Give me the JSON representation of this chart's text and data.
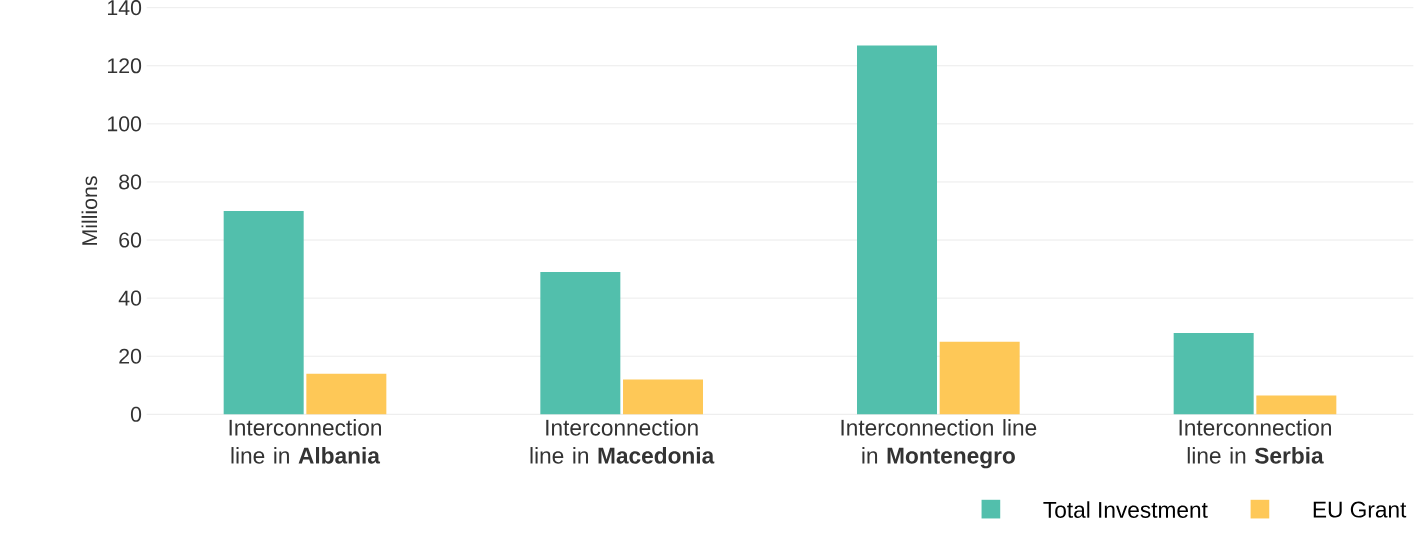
{
  "chart_data": {
    "type": "bar",
    "ylabel": "Millions",
    "categories": [
      "Interconnection line in **Albania**",
      "Interconnection line in **Macedonia**",
      "Interconnection line in **Montenegro**",
      "Interconnection line in **Serbia**"
    ],
    "series": [
      {
        "name": "Total Investment",
        "color": "#52bfac",
        "values": [
          70,
          49,
          127,
          28
        ]
      },
      {
        "name": "EU Grant",
        "color": "#fec857",
        "values": [
          14,
          12,
          25,
          6.5
        ]
      }
    ],
    "ylim": [
      0,
      140
    ],
    "yticks": [
      0,
      20,
      40,
      60,
      80,
      100,
      120,
      140
    ],
    "grid": "y",
    "legend": "bottom right"
  }
}
